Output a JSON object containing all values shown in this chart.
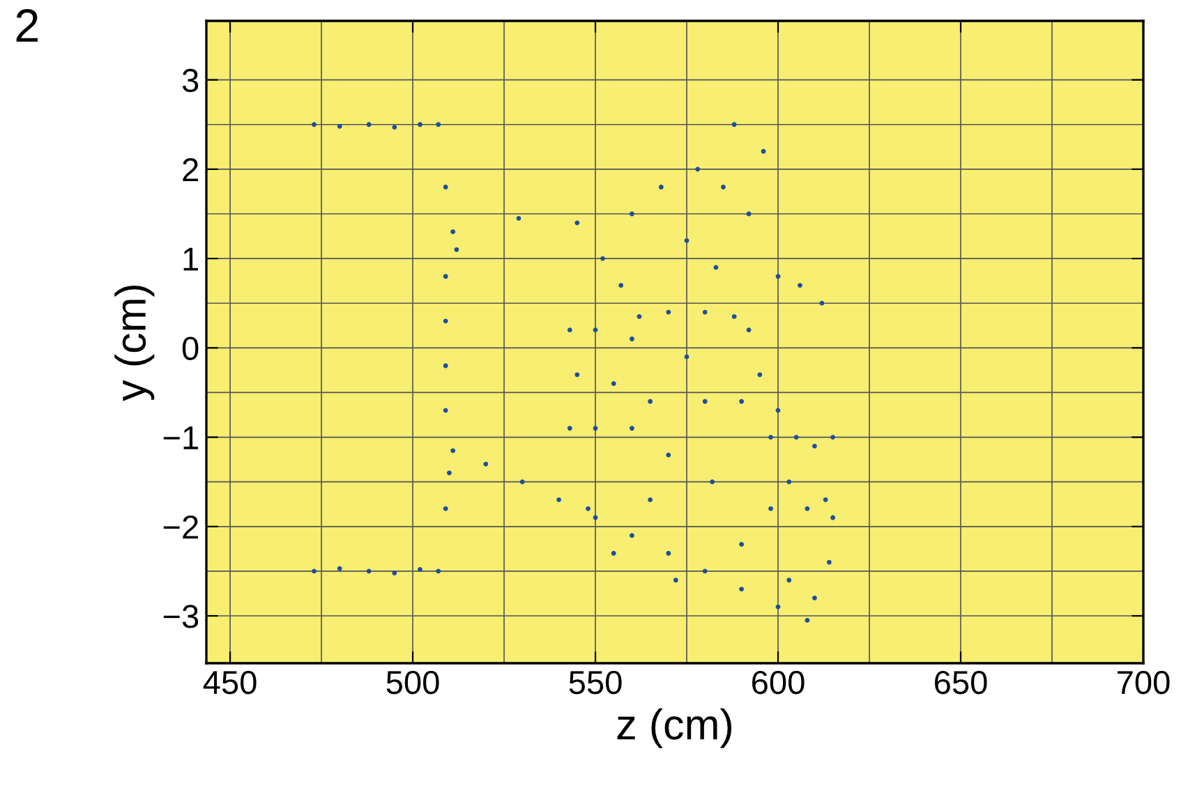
{
  "chart_data": {
    "type": "scatter",
    "xlabel": "z (cm)",
    "ylabel": "y (cm)",
    "annotations": [
      "2"
    ],
    "xlim": [
      443.5,
      700
    ],
    "ylim": [
      -3.53,
      3.66
    ],
    "xticks": [
      450,
      500,
      550,
      600,
      650,
      700
    ],
    "yticks": [
      -3,
      -2,
      -1,
      0,
      1,
      2,
      3
    ],
    "grid": true,
    "marker": "circle",
    "series": [
      {
        "color": "#1f4e9c",
        "x": [
          473,
          480,
          488,
          495,
          502,
          507,
          509,
          511,
          512,
          473,
          480,
          488,
          495,
          502,
          507,
          509,
          510,
          511,
          509,
          509,
          509,
          509,
          529,
          520,
          530,
          540,
          550,
          560,
          570,
          580,
          590,
          600,
          608,
          543,
          543,
          545,
          550,
          550,
          555,
          560,
          560,
          562,
          565,
          570,
          575,
          580,
          580,
          588,
          590,
          592,
          595,
          598,
          600,
          603,
          605,
          608,
          610,
          613,
          615,
          615,
          545,
          548,
          552,
          555,
          560,
          565,
          568,
          572,
          575,
          578,
          582,
          585,
          588,
          590,
          592,
          596,
          600,
          603,
          606,
          610,
          612,
          614,
          557,
          570,
          583,
          598
        ],
        "values": [
          2.5,
          2.48,
          2.5,
          2.47,
          2.5,
          2.5,
          1.8,
          1.3,
          1.1,
          -2.5,
          -2.47,
          -2.5,
          -2.52,
          -2.48,
          -2.5,
          -1.8,
          -1.4,
          -1.15,
          0.8,
          0.3,
          -0.2,
          -0.7,
          1.45,
          -1.3,
          -1.5,
          -1.7,
          -1.9,
          -2.1,
          -2.3,
          -2.5,
          -2.7,
          -2.9,
          -3.05,
          0.2,
          -0.9,
          -0.3,
          0.2,
          -0.9,
          -0.4,
          0.1,
          -0.9,
          0.35,
          -0.6,
          0.4,
          -0.1,
          0.4,
          -0.6,
          0.35,
          -0.6,
          0.2,
          -0.3,
          -1.0,
          -0.7,
          -1.5,
          -1.0,
          -1.8,
          -1.1,
          -1.7,
          -1.0,
          -1.9,
          1.4,
          -1.8,
          1.0,
          -2.3,
          1.5,
          -1.7,
          1.8,
          -2.6,
          1.2,
          2.0,
          -1.5,
          1.8,
          2.5,
          -2.2,
          1.5,
          2.2,
          0.8,
          -2.6,
          0.7,
          -2.8,
          0.5,
          -2.4,
          0.7,
          -1.2,
          0.9,
          -1.8
        ]
      }
    ]
  }
}
